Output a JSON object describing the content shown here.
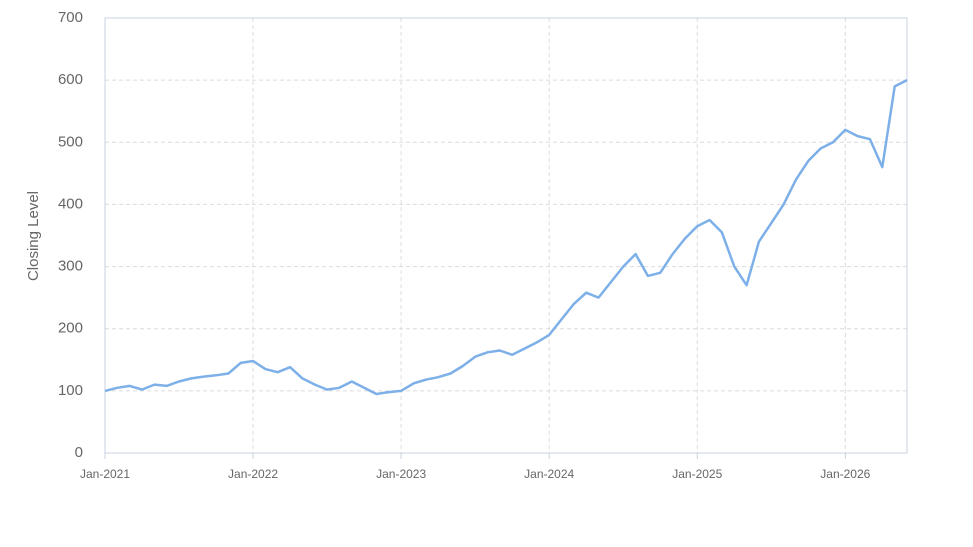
{
  "chart_data": {
    "type": "line",
    "y_label": "Closing Level",
    "x": [
      "2021-01",
      "2021-02",
      "2021-03",
      "2021-04",
      "2021-05",
      "2021-06",
      "2021-07",
      "2021-08",
      "2021-09",
      "2021-10",
      "2021-11",
      "2021-12",
      "2022-01",
      "2022-02",
      "2022-03",
      "2022-04",
      "2022-05",
      "2022-06",
      "2022-07",
      "2022-08",
      "2022-09",
      "2022-10",
      "2022-11",
      "2022-12",
      "2023-01",
      "2023-02",
      "2023-03",
      "2023-04",
      "2023-05",
      "2023-06",
      "2023-07",
      "2023-08",
      "2023-09",
      "2023-10",
      "2023-11",
      "2023-12",
      "2024-01",
      "2024-02",
      "2024-03",
      "2024-04",
      "2024-05",
      "2024-06",
      "2024-07",
      "2024-08",
      "2024-09",
      "2024-10",
      "2024-11",
      "2024-12",
      "2025-01",
      "2025-02",
      "2025-03",
      "2025-04",
      "2025-05",
      "2025-06",
      "2025-07",
      "2025-08",
      "2025-09",
      "2025-10",
      "2025-11",
      "2025-12",
      "2026-01",
      "2026-02",
      "2026-03",
      "2026-04",
      "2026-05",
      "2026-06"
    ],
    "series": [
      {
        "color": "#7db0e8",
        "values": [
          100,
          105,
          108,
          102,
          110,
          108,
          115,
          120,
          123,
          125,
          128,
          145,
          148,
          135,
          130,
          138,
          120,
          110,
          102,
          105,
          115,
          105,
          95,
          98,
          100,
          112,
          118,
          122,
          128,
          140,
          155,
          162,
          165,
          158,
          168,
          178,
          190,
          215,
          240,
          258,
          250,
          275,
          300,
          320,
          285,
          290,
          320,
          345,
          365,
          375,
          355,
          300,
          270,
          340,
          370,
          400,
          440,
          470,
          490,
          500,
          520,
          510,
          505,
          460,
          590,
          600
        ]
      }
    ],
    "xlim": [
      "2021-01",
      "2026-06"
    ],
    "xticks": [
      {
        "value": "2021-01",
        "label": "Jan-2021"
      },
      {
        "value": "2022-01",
        "label": "Jan-2022"
      },
      {
        "value": "2023-01",
        "label": "Jan-2023"
      },
      {
        "value": "2024-01",
        "label": "Jan-2024"
      },
      {
        "value": "2025-01",
        "label": "Jan-2025"
      },
      {
        "value": "2026-01",
        "label": "Jan-2026"
      }
    ],
    "ylim": [
      0,
      700
    ],
    "yticks": [
      0,
      100,
      200,
      300,
      400,
      500,
      600,
      700
    ],
    "grid": true
  }
}
